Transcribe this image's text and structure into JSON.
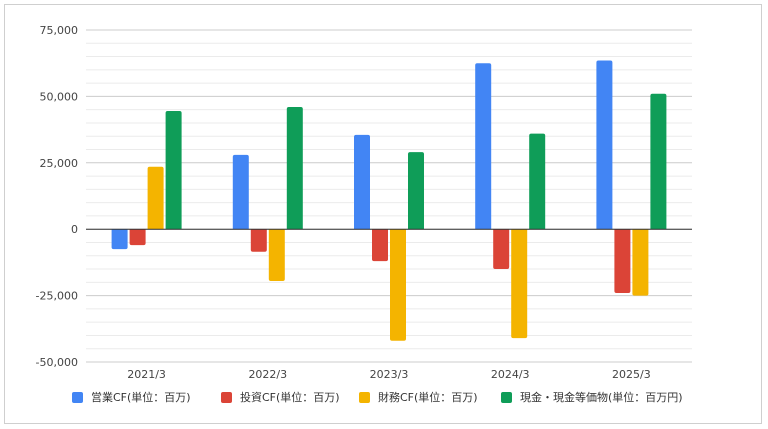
{
  "chart_data": {
    "type": "bar",
    "categories": [
      "2021/3",
      "2022/3",
      "2023/3",
      "2024/3",
      "2025/3"
    ],
    "series": [
      {
        "name": "営業CF(単位：百万)",
        "color": "#4285F4",
        "values": [
          -7500,
          28000,
          35500,
          62500,
          63500
        ]
      },
      {
        "name": "投資CF(単位：百万)",
        "color": "#DB4437",
        "values": [
          -6000,
          -8500,
          -12000,
          -15000,
          -24000
        ]
      },
      {
        "name": "財務CF(単位：百万)",
        "color": "#F4B400",
        "values": [
          23500,
          -19500,
          -42000,
          -41000,
          -25000
        ]
      },
      {
        "name": "現金・現金等価物(単位：百万円)",
        "color": "#0F9D58",
        "values": [
          44500,
          46000,
          29000,
          36000,
          51000
        ]
      }
    ],
    "yticks": [
      "75,000",
      "50,000",
      "25,000",
      "0",
      "-25,000",
      "-50,000"
    ],
    "ylim": [
      -50000,
      75000
    ],
    "grid": true,
    "legend": "bottom"
  }
}
